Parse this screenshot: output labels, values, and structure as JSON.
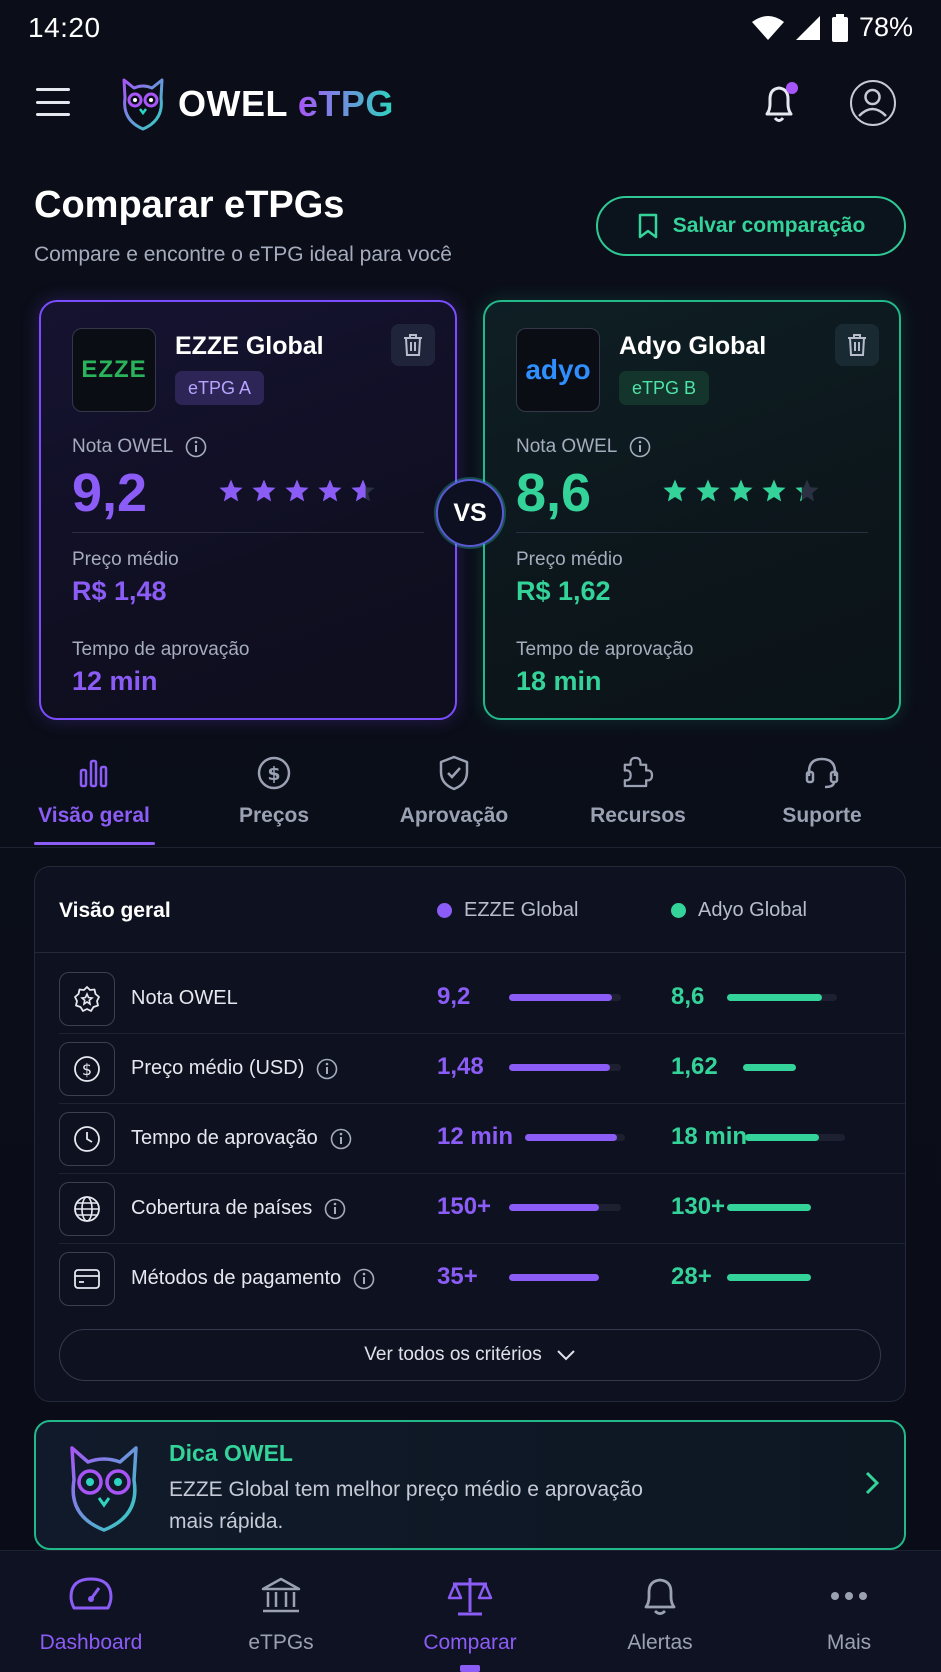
{
  "status": {
    "time": "14:20",
    "battery": "78%"
  },
  "header": {
    "brand_main": "OWEL",
    "brand_accent": "eTPG"
  },
  "page": {
    "title": "Comparar eTPGs",
    "subtitle": "Compare e encontre o eTPG ideal para você",
    "save_label": "Salvar comparação"
  },
  "cards": [
    {
      "logo_text": "EZZE",
      "name": "EZZE Global",
      "badge": "eTPG A",
      "nota_label": "Nota OWEL",
      "score": "9,2",
      "rating": 4.6,
      "price_label": "Preço médio",
      "price": "R$ 1,48",
      "time_label": "Tempo de aprovação",
      "time": "12 min"
    },
    {
      "logo_text": "adyo",
      "name": "Adyo Global",
      "badge": "eTPG B",
      "nota_label": "Nota OWEL",
      "score": "8,6",
      "rating": 4.3,
      "price_label": "Preço médio",
      "price": "R$ 1,62",
      "time_label": "Tempo de aprovação",
      "time": "18 min"
    }
  ],
  "vs_label": "VS",
  "tabs": [
    {
      "label": "Visão geral",
      "icon": "bar-chart-icon",
      "active": true
    },
    {
      "label": "Preços",
      "icon": "dollar-circle-icon"
    },
    {
      "label": "Aprovação",
      "icon": "shield-check-icon"
    },
    {
      "label": "Recursos",
      "icon": "puzzle-icon"
    },
    {
      "label": "Suporte",
      "icon": "headset-icon"
    }
  ],
  "overview": {
    "title": "Visão geral",
    "legend": [
      "EZZE Global",
      "Adyo Global"
    ],
    "rows": [
      {
        "label": "Nota OWEL",
        "icon": "star-badge-icon",
        "a": "9,2",
        "b": "8,6",
        "a_level": 0.92,
        "b_level": 0.86,
        "info": false
      },
      {
        "label": "Preço médio (USD)",
        "icon": "dollar-circle-icon",
        "a": "1,48",
        "b": "1,62",
        "a_level": 0.9,
        "b_level": 0.55,
        "info": true
      },
      {
        "label": "Tempo de aprovação",
        "icon": "clock-icon",
        "a": "12 min",
        "b": "18 min",
        "a_level": 0.92,
        "b_level": 0.74,
        "info": true
      },
      {
        "label": "Cobertura de países",
        "icon": "globe-icon",
        "a": "150+",
        "b": "130+",
        "a_level": 0.8,
        "b_level": 0.7,
        "info": true
      },
      {
        "label": "Métodos de pagamento",
        "icon": "card-icon",
        "a": "35+",
        "b": "28+",
        "a_level": 0.8,
        "b_level": 0.7,
        "info": true
      }
    ],
    "more_label": "Ver todos os critérios"
  },
  "tip": {
    "title": "Dica OWEL",
    "text": "EZZE Global tem melhor preço médio e aprovação mais rápida."
  },
  "bottom_nav": [
    {
      "label": "Dashboard",
      "icon": "gauge-icon",
      "active": true
    },
    {
      "label": "eTPGs",
      "icon": "bank-icon"
    },
    {
      "label": "Comparar",
      "icon": "scale-icon",
      "active": true
    },
    {
      "label": "Alertas",
      "icon": "bell-icon"
    },
    {
      "label": "Mais",
      "icon": "more-dots-icon"
    }
  ],
  "colors": {
    "purple": "#8b5cf6",
    "green": "#34d399",
    "background": "#0a0d18"
  }
}
